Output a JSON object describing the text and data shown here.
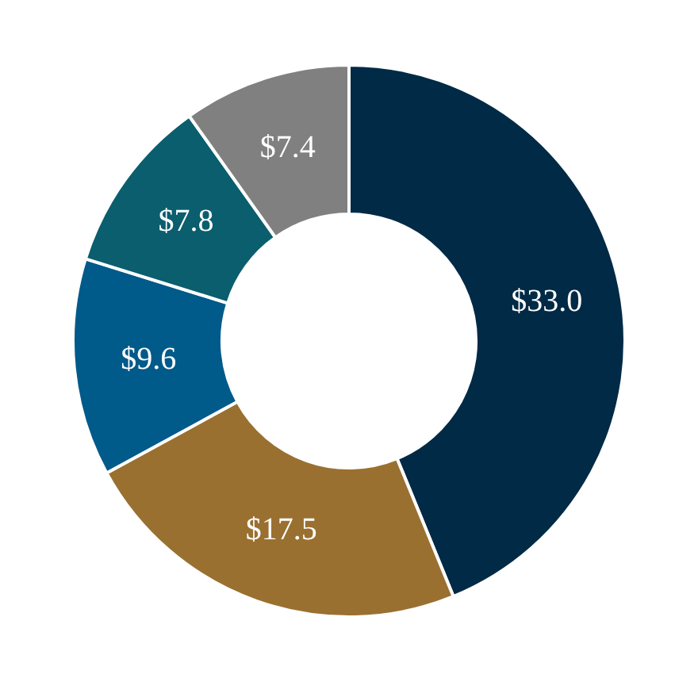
{
  "chart_data": {
    "type": "donut",
    "categories": [
      null,
      null,
      null,
      null,
      null
    ],
    "values": [
      33.0,
      17.5,
      9.6,
      7.8,
      7.4
    ],
    "colors": [
      "#002a45",
      "#9a7030",
      "#005a8a",
      "#0a5e6e",
      "#808080"
    ],
    "value_labels": [
      "$33.0",
      "$17.5",
      "$9.6",
      "$7.8",
      "$7.4"
    ]
  }
}
